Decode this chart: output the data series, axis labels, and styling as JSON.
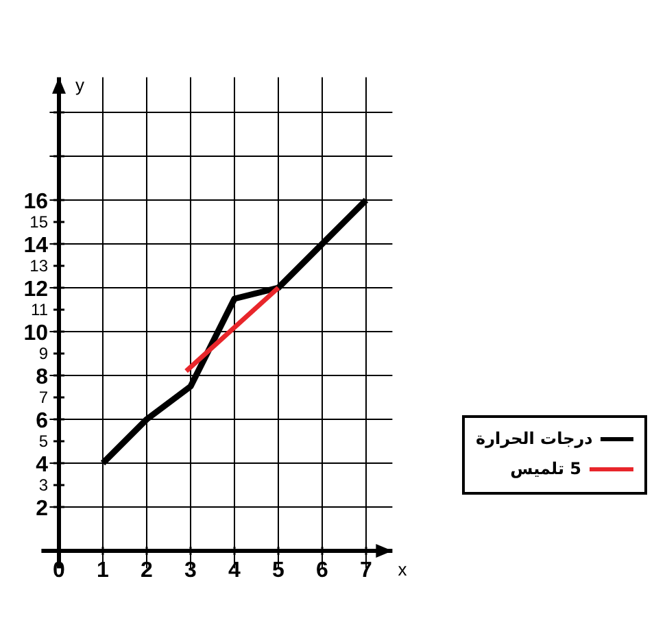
{
  "chart_data": {
    "type": "line",
    "xlabel": "x",
    "ylabel": "y",
    "xlim": [
      -0.4,
      7.6
    ],
    "ylim": [
      -0.8,
      21.6
    ],
    "xticks": [
      0,
      1,
      2,
      3,
      4,
      5,
      6,
      7
    ],
    "yticks": [
      2,
      3,
      4,
      5,
      6,
      7,
      8,
      9,
      10,
      11,
      12,
      13,
      14,
      15,
      16,
      {
        "value": 18,
        "label": null
      },
      {
        "value": 20,
        "label": null
      }
    ],
    "grid": true,
    "legend": "right",
    "marker": "none",
    "line_style": "solid",
    "series": [
      {
        "name": "درجات الحرارة",
        "color": "#000000",
        "x": [
          1,
          2,
          3,
          4,
          5,
          6,
          7
        ],
        "values": [
          4,
          6,
          7.5,
          11.5,
          12,
          14,
          16
        ]
      },
      {
        "name": "5 تلميس",
        "color": "#e8262b",
        "x": [
          2.9,
          5
        ],
        "values": [
          8.2,
          12
        ]
      }
    ]
  }
}
